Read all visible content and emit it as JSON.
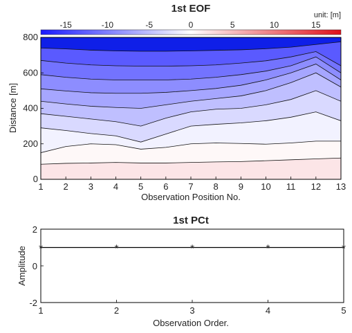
{
  "chart_data": [
    {
      "type": "heatmap",
      "title": "1st EOF",
      "unit_label": "unit: [m]",
      "xlabel": "Observation Position No.",
      "ylabel": "Distance [m]",
      "xlim": [
        1,
        13
      ],
      "ylim": [
        0,
        800
      ],
      "x_ticks": [
        1,
        2,
        3,
        4,
        5,
        6,
        7,
        8,
        9,
        10,
        11,
        12,
        13
      ],
      "y_ticks": [
        0,
        200,
        400,
        600,
        800
      ],
      "colorbar": {
        "range": [
          -18,
          18
        ],
        "ticks": [
          -15,
          -10,
          -5,
          0,
          5,
          10,
          15
        ],
        "colors": {
          "negative": "#1a1aff",
          "zero": "#ffffff",
          "positive": "#e0101a"
        }
      },
      "contours": [
        {
          "level": -14,
          "y": [
            740,
            735,
            728,
            724,
            722,
            722,
            724,
            727,
            730,
            736,
            745,
            760,
            775
          ]
        },
        {
          "level": -12,
          "y": [
            670,
            655,
            645,
            640,
            638,
            638,
            640,
            645,
            655,
            668,
            690,
            720,
            640
          ]
        },
        {
          "level": -10,
          "y": [
            590,
            575,
            565,
            560,
            560,
            560,
            565,
            575,
            590,
            610,
            640,
            690,
            600
          ]
        },
        {
          "level": -8,
          "y": [
            510,
            498,
            488,
            485,
            485,
            490,
            500,
            512,
            530,
            560,
            600,
            650,
            560
          ]
        },
        {
          "level": -6,
          "y": [
            440,
            425,
            412,
            405,
            400,
            420,
            440,
            455,
            470,
            500,
            545,
            600,
            520
          ]
        },
        {
          "level": -4,
          "y": [
            370,
            355,
            340,
            325,
            300,
            345,
            380,
            395,
            400,
            420,
            450,
            500,
            440
          ]
        },
        {
          "level": -2,
          "y": [
            290,
            275,
            258,
            245,
            210,
            255,
            300,
            310,
            318,
            330,
            350,
            380,
            330
          ]
        },
        {
          "level": 0,
          "y": [
            150,
            185,
            200,
            195,
            170,
            180,
            200,
            205,
            202,
            198,
            205,
            215,
            215
          ]
        },
        {
          "level": 2,
          "y": [
            85,
            90,
            92,
            95,
            92,
            92,
            95,
            98,
            100,
            105,
            110,
            115,
            120
          ]
        }
      ]
    },
    {
      "type": "line",
      "title": "1st PCt",
      "xlabel": "Observation Order.",
      "ylabel": "Amplitude",
      "x": [
        1,
        2,
        3,
        4,
        5
      ],
      "xlim": [
        1,
        5
      ],
      "ylim": [
        -2,
        2
      ],
      "y_ticks": [
        -2,
        0,
        2
      ],
      "series": [
        {
          "values": [
            1.0,
            1.0,
            1.0,
            1.0,
            1.0
          ],
          "marker": "*",
          "color": "#000000"
        }
      ]
    }
  ]
}
